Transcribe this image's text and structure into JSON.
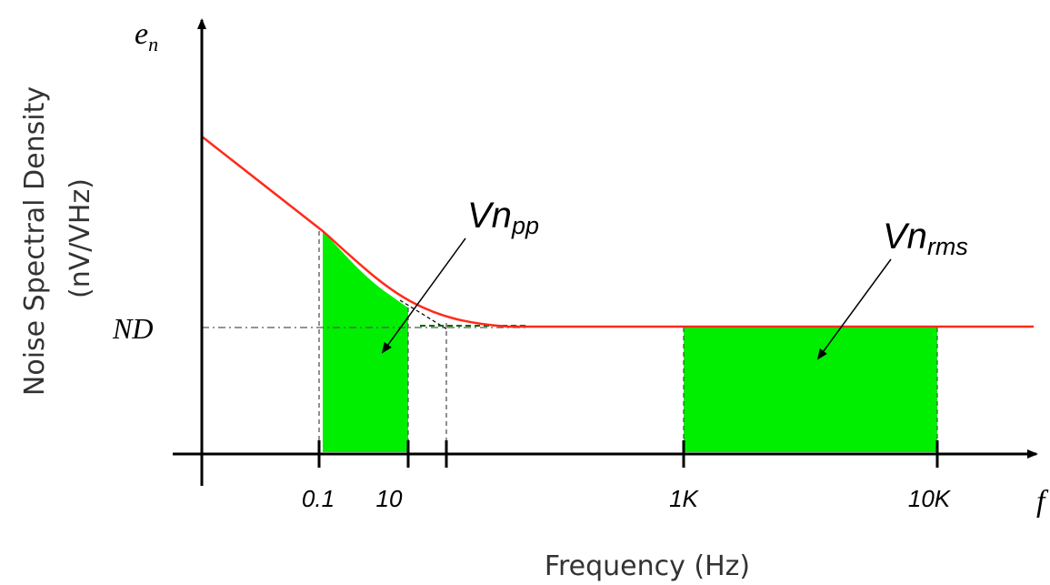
{
  "axes": {
    "y_symbol_main": "e",
    "y_symbol_sub": "n",
    "x_symbol": "f",
    "y_title_line1": "Noise Spectral Density",
    "y_title_line2": "(nV/VHz)",
    "x_title": "Frequency (Hz)",
    "nd_label": "ND"
  },
  "ticks": [
    "0.1",
    "10",
    "1K",
    "10K"
  ],
  "callouts": {
    "pp_main": "Vn",
    "pp_sub": "pp",
    "rms_main": "Vn",
    "rms_sub": "rms"
  },
  "colors": {
    "curve": "#ff2a1a",
    "fill": "#00ee00",
    "axis": "#000000",
    "guide": "#555555"
  }
}
